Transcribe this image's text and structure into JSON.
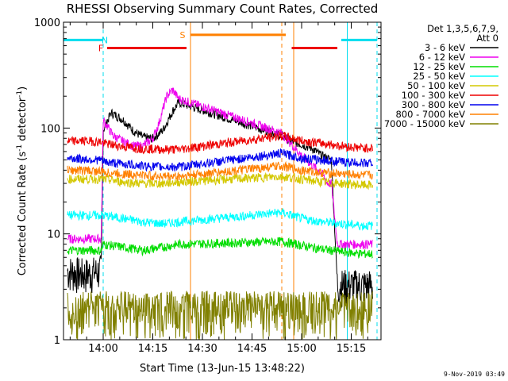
{
  "chart_data": {
    "type": "line",
    "title": "RHESSI Observing Summary Count Rates, Corrected",
    "xlabel": "Start Time (13-Jun-15 13:48:22)",
    "ylabel_main": "Corrected Count Rate (s",
    "ylabel_sup1": "-1",
    "ylabel_mid": " detector",
    "ylabel_sup2": "-1",
    "ylabel_end": ")",
    "ylog": true,
    "ylim": [
      1,
      1000
    ],
    "xlim": [
      13.8,
      15.4
    ],
    "x_ticks": [
      {
        "value": 14.0,
        "label": "14:00"
      },
      {
        "value": 14.25,
        "label": "14:15"
      },
      {
        "value": 14.5,
        "label": "14:30"
      },
      {
        "value": 14.75,
        "label": "14:45"
      },
      {
        "value": 15.0,
        "label": "15:00"
      },
      {
        "value": 15.25,
        "label": "15:15"
      }
    ],
    "y_ticks": [
      {
        "value": 1,
        "label": "1"
      },
      {
        "value": 10,
        "label": "10"
      },
      {
        "value": 100,
        "label": "100"
      },
      {
        "value": 1000,
        "label": "1000"
      }
    ],
    "legend_header": [
      "Det 1,3,5,6,7,9,",
      "Att 0"
    ],
    "legend_position": "outside-right",
    "timestamp": "9-Nov-2019 03:49",
    "gap": [
      14.4,
      14.9
    ],
    "series": [
      {
        "name": "3 - 6 keV",
        "color": "#000000",
        "x": [
          13.82,
          13.9,
          13.99,
          14.0,
          14.04,
          14.1,
          14.15,
          14.2,
          14.25,
          14.3,
          14.35,
          14.38,
          14.9,
          14.95,
          15.0,
          15.05,
          15.1,
          15.15,
          15.18,
          15.22,
          15.3,
          15.36
        ],
        "values": [
          4.5,
          4.2,
          4.5,
          95,
          140,
          120,
          95,
          82,
          80,
          95,
          145,
          175,
          85,
          75,
          70,
          65,
          55,
          50,
          3.3,
          3.3,
          3.3,
          3.3
        ]
      },
      {
        "name": "6 - 12 keV",
        "color": "#ee00ee",
        "x": [
          13.82,
          13.9,
          13.99,
          14.0,
          14.05,
          14.1,
          14.15,
          14.2,
          14.25,
          14.28,
          14.32,
          14.35,
          14.38,
          14.9,
          14.95,
          15.0,
          15.05,
          15.1,
          15.13,
          15.15,
          15.18,
          15.22,
          15.3,
          15.36
        ],
        "values": [
          9,
          9,
          9,
          120,
          85,
          75,
          68,
          68,
          80,
          110,
          200,
          230,
          190,
          90,
          70,
          55,
          45,
          38,
          30,
          30,
          8,
          8,
          8,
          8
        ]
      },
      {
        "name": "12 - 25 keV",
        "color": "#00dd00",
        "x": [
          13.82,
          13.9,
          13.99,
          14.0,
          14.1,
          14.2,
          14.3,
          14.38,
          14.9,
          15.0,
          15.1,
          15.2,
          15.3,
          15.36
        ],
        "values": [
          7,
          7,
          7,
          8,
          7.5,
          7,
          7.5,
          8,
          8.5,
          7.8,
          7.2,
          6.8,
          6.5,
          6.5
        ]
      },
      {
        "name": "25 - 50 keV",
        "color": "#00ffff",
        "x": [
          13.82,
          13.9,
          13.99,
          14.0,
          14.1,
          14.2,
          14.3,
          14.38,
          14.9,
          15.0,
          15.1,
          15.2,
          15.3,
          15.36
        ],
        "values": [
          15,
          15,
          15,
          15,
          14,
          13,
          12.5,
          13,
          16,
          14,
          13,
          12.5,
          12,
          12
        ]
      },
      {
        "name": "50 - 100 keV",
        "color": "#d4c800",
        "x": [
          13.82,
          13.9,
          13.99,
          14.0,
          14.1,
          14.2,
          14.3,
          14.38,
          14.9,
          15.0,
          15.1,
          15.2,
          15.3,
          15.36
        ],
        "values": [
          33,
          33,
          33,
          33,
          31,
          30,
          30,
          31,
          35,
          33,
          31,
          30,
          29,
          29
        ]
      },
      {
        "name": "100 - 300 keV",
        "color": "#ee0000",
        "x": [
          13.82,
          13.9,
          13.99,
          14.0,
          14.1,
          14.2,
          14.3,
          14.38,
          14.9,
          15.0,
          15.1,
          15.2,
          15.3,
          15.36
        ],
        "values": [
          75,
          76,
          74,
          72,
          67,
          64,
          63,
          63,
          85,
          76,
          72,
          68,
          65,
          65
        ]
      },
      {
        "name": "300 - 800 keV",
        "color": "#0000ee",
        "x": [
          13.82,
          13.9,
          13.99,
          14.0,
          14.1,
          14.2,
          14.3,
          14.38,
          14.9,
          15.0,
          15.1,
          15.2,
          15.3,
          15.36
        ],
        "values": [
          52,
          51,
          50,
          48,
          46,
          44,
          43,
          43,
          58,
          52,
          50,
          48,
          47,
          47
        ]
      },
      {
        "name": "800 - 7000 keV",
        "color": "#ff8000",
        "x": [
          13.82,
          13.9,
          13.99,
          14.0,
          14.1,
          14.2,
          14.3,
          14.38,
          14.9,
          15.0,
          15.1,
          15.2,
          15.3,
          15.36
        ],
        "values": [
          40,
          40,
          39,
          38,
          37,
          36,
          35,
          35,
          44,
          40,
          38,
          37,
          36,
          36
        ]
      },
      {
        "name": "7000 - 15000 keV",
        "color": "#808000",
        "x": [
          13.82,
          13.9,
          13.99,
          14.0,
          14.1,
          14.2,
          14.3,
          14.38,
          14.9,
          15.0,
          15.1,
          15.2,
          15.3,
          15.36
        ],
        "values": [
          2,
          2,
          2,
          2,
          2,
          2,
          2,
          2,
          2,
          2,
          2,
          2,
          2,
          2
        ]
      }
    ],
    "flags": [
      {
        "label": "N",
        "color": "#00ddee",
        "bars": [
          [
            13.8,
            14.0
          ],
          [
            15.2,
            15.38
          ]
        ],
        "level": 680
      },
      {
        "label": "F",
        "color": "#ee0000",
        "bars": [
          [
            14.02,
            14.42
          ],
          [
            14.95,
            15.18
          ]
        ],
        "level": 570
      },
      {
        "label": "S",
        "color": "#ff8000",
        "bars": [
          [
            14.44,
            14.92
          ]
        ],
        "level": 760
      }
    ],
    "vlines": [
      {
        "x": 13.8,
        "color": "#00ddee",
        "dash": false
      },
      {
        "x": 14.0,
        "color": "#00ddee",
        "dash": true
      },
      {
        "x": 15.23,
        "color": "#00ddee",
        "dash": false
      },
      {
        "x": 15.38,
        "color": "#00ddee",
        "dash": true
      },
      {
        "x": 14.44,
        "color": "#ff8000",
        "dash": false
      },
      {
        "x": 14.9,
        "color": "#ff8000",
        "dash": true
      },
      {
        "x": 14.96,
        "color": "#ff8000",
        "dash": false
      }
    ]
  }
}
